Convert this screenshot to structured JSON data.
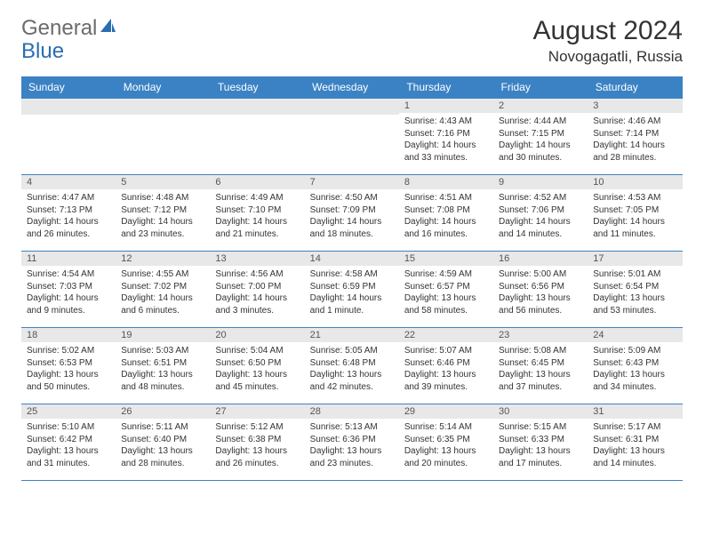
{
  "logo": {
    "part1": "General",
    "part2": "Blue"
  },
  "title": "August 2024",
  "location": "Novogagatli, Russia",
  "colors": {
    "header_bg": "#3b82c4",
    "header_text": "#ffffff",
    "daybar_bg": "#e8e8e8",
    "border": "#3b82c4",
    "logo_gray": "#6b6b6b",
    "logo_blue": "#2a6db0"
  },
  "dayNames": [
    "Sunday",
    "Monday",
    "Tuesday",
    "Wednesday",
    "Thursday",
    "Friday",
    "Saturday"
  ],
  "weeks": [
    [
      null,
      null,
      null,
      null,
      {
        "n": "1",
        "sr": "4:43 AM",
        "ss": "7:16 PM",
        "dl": "14 hours and 33 minutes."
      },
      {
        "n": "2",
        "sr": "4:44 AM",
        "ss": "7:15 PM",
        "dl": "14 hours and 30 minutes."
      },
      {
        "n": "3",
        "sr": "4:46 AM",
        "ss": "7:14 PM",
        "dl": "14 hours and 28 minutes."
      }
    ],
    [
      {
        "n": "4",
        "sr": "4:47 AM",
        "ss": "7:13 PM",
        "dl": "14 hours and 26 minutes."
      },
      {
        "n": "5",
        "sr": "4:48 AM",
        "ss": "7:12 PM",
        "dl": "14 hours and 23 minutes."
      },
      {
        "n": "6",
        "sr": "4:49 AM",
        "ss": "7:10 PM",
        "dl": "14 hours and 21 minutes."
      },
      {
        "n": "7",
        "sr": "4:50 AM",
        "ss": "7:09 PM",
        "dl": "14 hours and 18 minutes."
      },
      {
        "n": "8",
        "sr": "4:51 AM",
        "ss": "7:08 PM",
        "dl": "14 hours and 16 minutes."
      },
      {
        "n": "9",
        "sr": "4:52 AM",
        "ss": "7:06 PM",
        "dl": "14 hours and 14 minutes."
      },
      {
        "n": "10",
        "sr": "4:53 AM",
        "ss": "7:05 PM",
        "dl": "14 hours and 11 minutes."
      }
    ],
    [
      {
        "n": "11",
        "sr": "4:54 AM",
        "ss": "7:03 PM",
        "dl": "14 hours and 9 minutes."
      },
      {
        "n": "12",
        "sr": "4:55 AM",
        "ss": "7:02 PM",
        "dl": "14 hours and 6 minutes."
      },
      {
        "n": "13",
        "sr": "4:56 AM",
        "ss": "7:00 PM",
        "dl": "14 hours and 3 minutes."
      },
      {
        "n": "14",
        "sr": "4:58 AM",
        "ss": "6:59 PM",
        "dl": "14 hours and 1 minute."
      },
      {
        "n": "15",
        "sr": "4:59 AM",
        "ss": "6:57 PM",
        "dl": "13 hours and 58 minutes."
      },
      {
        "n": "16",
        "sr": "5:00 AM",
        "ss": "6:56 PM",
        "dl": "13 hours and 56 minutes."
      },
      {
        "n": "17",
        "sr": "5:01 AM",
        "ss": "6:54 PM",
        "dl": "13 hours and 53 minutes."
      }
    ],
    [
      {
        "n": "18",
        "sr": "5:02 AM",
        "ss": "6:53 PM",
        "dl": "13 hours and 50 minutes."
      },
      {
        "n": "19",
        "sr": "5:03 AM",
        "ss": "6:51 PM",
        "dl": "13 hours and 48 minutes."
      },
      {
        "n": "20",
        "sr": "5:04 AM",
        "ss": "6:50 PM",
        "dl": "13 hours and 45 minutes."
      },
      {
        "n": "21",
        "sr": "5:05 AM",
        "ss": "6:48 PM",
        "dl": "13 hours and 42 minutes."
      },
      {
        "n": "22",
        "sr": "5:07 AM",
        "ss": "6:46 PM",
        "dl": "13 hours and 39 minutes."
      },
      {
        "n": "23",
        "sr": "5:08 AM",
        "ss": "6:45 PM",
        "dl": "13 hours and 37 minutes."
      },
      {
        "n": "24",
        "sr": "5:09 AM",
        "ss": "6:43 PM",
        "dl": "13 hours and 34 minutes."
      }
    ],
    [
      {
        "n": "25",
        "sr": "5:10 AM",
        "ss": "6:42 PM",
        "dl": "13 hours and 31 minutes."
      },
      {
        "n": "26",
        "sr": "5:11 AM",
        "ss": "6:40 PM",
        "dl": "13 hours and 28 minutes."
      },
      {
        "n": "27",
        "sr": "5:12 AM",
        "ss": "6:38 PM",
        "dl": "13 hours and 26 minutes."
      },
      {
        "n": "28",
        "sr": "5:13 AM",
        "ss": "6:36 PM",
        "dl": "13 hours and 23 minutes."
      },
      {
        "n": "29",
        "sr": "5:14 AM",
        "ss": "6:35 PM",
        "dl": "13 hours and 20 minutes."
      },
      {
        "n": "30",
        "sr": "5:15 AM",
        "ss": "6:33 PM",
        "dl": "13 hours and 17 minutes."
      },
      {
        "n": "31",
        "sr": "5:17 AM",
        "ss": "6:31 PM",
        "dl": "13 hours and 14 minutes."
      }
    ]
  ],
  "labels": {
    "sunrise": "Sunrise:",
    "sunset": "Sunset:",
    "daylight": "Daylight:"
  }
}
